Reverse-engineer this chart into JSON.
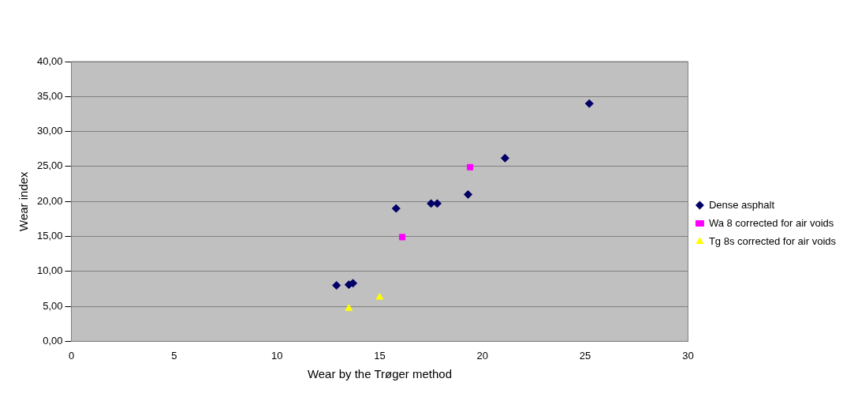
{
  "chart_data": {
    "type": "scatter",
    "xlabel": "Wear by the Trøger method",
    "ylabel": "Wear index",
    "xlim": [
      0,
      30
    ],
    "xticks": [
      0,
      5,
      10,
      15,
      20,
      25,
      30
    ],
    "ylim": [
      0,
      40
    ],
    "yticks": [
      {
        "value": 0,
        "label": "0,00"
      },
      {
        "value": 5,
        "label": "5,00"
      },
      {
        "value": 10,
        "label": "10,00"
      },
      {
        "value": 15,
        "label": "15,00"
      },
      {
        "value": 20,
        "label": "20,00"
      },
      {
        "value": 25,
        "label": "25,00"
      },
      {
        "value": 30,
        "label": "30,00"
      },
      {
        "value": 35,
        "label": "35,00"
      },
      {
        "value": 40,
        "label": "40,00"
      }
    ],
    "grid": "y",
    "legend": "right",
    "series": [
      {
        "name": "Dense asphalt",
        "color": "#000066",
        "marker": "diamond",
        "x": [
          12.9,
          13.5,
          13.7,
          15.8,
          17.5,
          17.8,
          19.3,
          21.1,
          25.2
        ],
        "values": [
          8.0,
          8.1,
          8.3,
          19.0,
          19.7,
          19.7,
          21.0,
          26.2,
          34.0
        ]
      },
      {
        "name": "Wa 8 corrected for air voids",
        "color": "#ff00ff",
        "marker": "square",
        "x": [
          16.1,
          19.4
        ],
        "values": [
          14.9,
          24.9
        ]
      },
      {
        "name": "Tg 8s corrected for air voids",
        "color": "#ffff00",
        "marker": "triangle",
        "x": [
          13.5,
          15.0
        ],
        "values": [
          4.7,
          6.3
        ]
      }
    ]
  }
}
